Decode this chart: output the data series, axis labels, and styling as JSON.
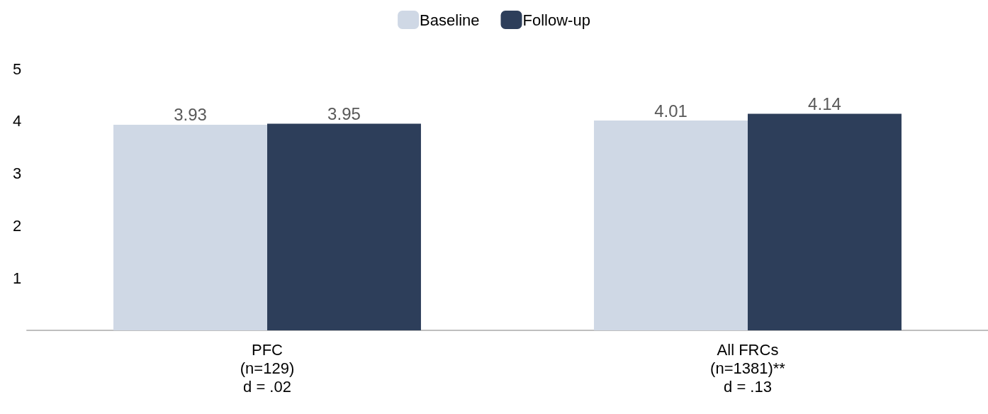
{
  "chart_data": {
    "type": "bar",
    "categories": [
      "PFC\n(n=129)\nd = .02",
      "All FRCs\n(n=1381)**\nd = .13"
    ],
    "series": [
      {
        "name": "Baseline",
        "color": "#cfd8e5",
        "values": [
          3.93,
          4.01
        ]
      },
      {
        "name": "Follow-up",
        "color": "#2d3e5a",
        "values": [
          3.95,
          4.14
        ]
      }
    ],
    "ylim": [
      0,
      5
    ],
    "yticks": [
      1,
      2,
      3,
      4,
      5
    ],
    "grid": false,
    "legend": "top",
    "data_labels": true
  }
}
